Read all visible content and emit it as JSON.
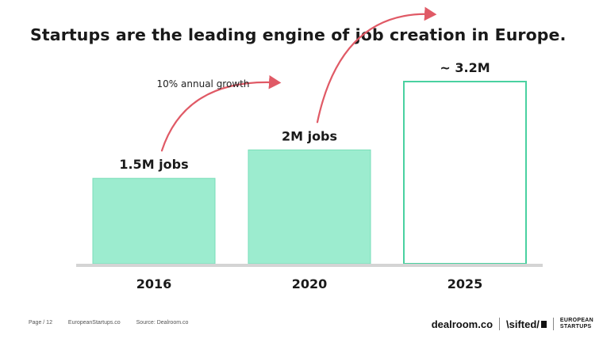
{
  "slide": {
    "title": "Startups are the leading engine of job creation in Europe."
  },
  "chart_data": {
    "type": "bar",
    "title": "",
    "xlabel": "",
    "ylabel": "",
    "categories": [
      "2016",
      "2020",
      "2025"
    ],
    "values": [
      1.5,
      2.0,
      3.2
    ],
    "unit": "M jobs",
    "data_labels": [
      "1.5M jobs",
      "2M jobs",
      "~ 3.2M"
    ],
    "projected": [
      false,
      false,
      true
    ],
    "ylim": [
      0,
      3.2
    ],
    "grid": false,
    "annotation": "10% annual growth",
    "colors": {
      "bar_fill": "#9ceccf",
      "bar_stroke": "#78deb8",
      "projected_fill": "#ffffff",
      "projected_stroke": "#4ad1a0",
      "baseline": "#d4d4d4",
      "arrow": "#e05a66"
    }
  },
  "footer": {
    "page": "Page / 12",
    "site": "EuropeanStartups.co",
    "source": "Source: Dealroom.co"
  },
  "logos": {
    "dealroom": "dealroom.co",
    "sifted": "\\sifted/",
    "european_line1": "EUROPEAN",
    "european_line2": "STARTUPS"
  }
}
